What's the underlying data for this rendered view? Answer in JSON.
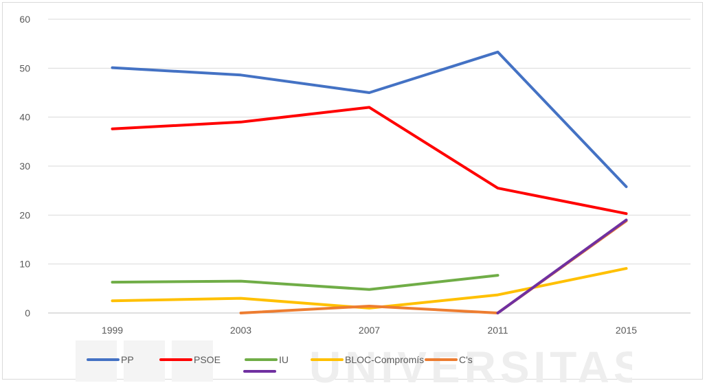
{
  "chart_data": {
    "type": "line",
    "title": "",
    "xlabel": "",
    "ylabel": "",
    "categories": [
      "1999",
      "2003",
      "2007",
      "2011",
      "2015"
    ],
    "y_ticks": [
      "0",
      "10",
      "20",
      "30",
      "40",
      "50",
      "60"
    ],
    "ylim": [
      0,
      60
    ],
    "grid": true,
    "legend_position": "bottom",
    "series": [
      {
        "name": "PP",
        "color": "#4472c4",
        "values": [
          50.1,
          48.6,
          45.0,
          53.3,
          25.8
        ]
      },
      {
        "name": "PSOE",
        "color": "#ff0000",
        "values": [
          37.6,
          39.0,
          42.0,
          25.5,
          20.3
        ]
      },
      {
        "name": "IU",
        "color": "#70ad47",
        "values": [
          6.3,
          6.5,
          4.8,
          7.7,
          null
        ]
      },
      {
        "name": "BLOC-Compromís",
        "color": "#ffc000",
        "values": [
          2.5,
          3.0,
          1.0,
          3.7,
          9.1
        ]
      },
      {
        "name": "C's",
        "color": "#ed7d31",
        "values": [
          null,
          0,
          1.4,
          0,
          18.8
        ]
      },
      {
        "name": "",
        "color": "#7030a0",
        "values": [
          null,
          null,
          null,
          0,
          19.0
        ]
      }
    ]
  },
  "watermark": {
    "text": "UNIVERSITAS"
  }
}
